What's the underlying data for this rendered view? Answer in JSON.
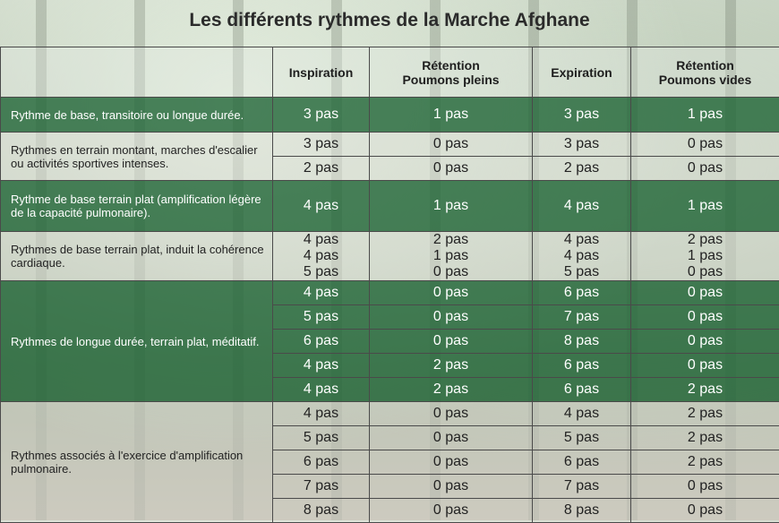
{
  "title": "Les différents rythmes de la Marche Afghane",
  "columns": [
    "Inspiration",
    "Rétention\nPoumons pleins",
    "Expiration",
    "Rétention\nPoumons vides"
  ],
  "groups": [
    {
      "label": "Rythme de base, transitoire ou longue durée.",
      "theme": "green",
      "height": 39,
      "rows": [
        [
          "3 pas",
          "1 pas",
          "3 pas",
          "1 pas"
        ]
      ]
    },
    {
      "label": "Rythmes en terrain montant, marches d'escalier ou activités sportives intenses.",
      "theme": "light",
      "height": 27,
      "rows": [
        [
          "3 pas",
          "0 pas",
          "3 pas",
          "0 pas"
        ],
        [
          "2 pas",
          "0 pas",
          "2 pas",
          "0 pas"
        ]
      ]
    },
    {
      "label": "Rythme de base terrain plat (amplification légère de la capacité pulmonaire).",
      "theme": "green",
      "height": 57,
      "rows": [
        [
          "4 pas",
          "1 pas",
          "4 pas",
          "1 pas"
        ]
      ]
    },
    {
      "label": "Rythmes de base terrain plat, induit la cohérence cardiaque.",
      "theme": "light",
      "height": 55,
      "stacked": true,
      "rows": [
        [
          "4 pas\n4 pas\n5 pas",
          "2 pas\n1 pas\n0 pas",
          "4 pas\n4 pas\n5 pas",
          "2 pas\n1 pas\n0 pas"
        ]
      ]
    },
    {
      "label": "Rythmes de longue durée, terrain plat, méditatif.",
      "theme": "green",
      "height": 27,
      "rows": [
        [
          "4 pas",
          "0 pas",
          "6 pas",
          "0 pas"
        ],
        [
          "5 pas",
          "0 pas",
          "7 pas",
          "0 pas"
        ],
        [
          "6 pas",
          "0 pas",
          "8 pas",
          "0 pas"
        ],
        [
          "4 pas",
          "2 pas",
          "6 pas",
          "0 pas"
        ],
        [
          "4 pas",
          "2 pas",
          "6 pas",
          "2 pas"
        ]
      ]
    },
    {
      "label": "Rythmes associés à l'exercice d'amplification pulmonaire.",
      "theme": "light",
      "height": 27,
      "rows": [
        [
          "4 pas",
          "0 pas",
          "4 pas",
          "2 pas"
        ],
        [
          "5 pas",
          "0 pas",
          "5 pas",
          "2 pas"
        ],
        [
          "6 pas",
          "0 pas",
          "6 pas",
          "2 pas"
        ],
        [
          "7 pas",
          "0 pas",
          "7 pas",
          "0 pas"
        ],
        [
          "8 pas",
          "0 pas",
          "8 pas",
          "0 pas"
        ]
      ]
    }
  ]
}
